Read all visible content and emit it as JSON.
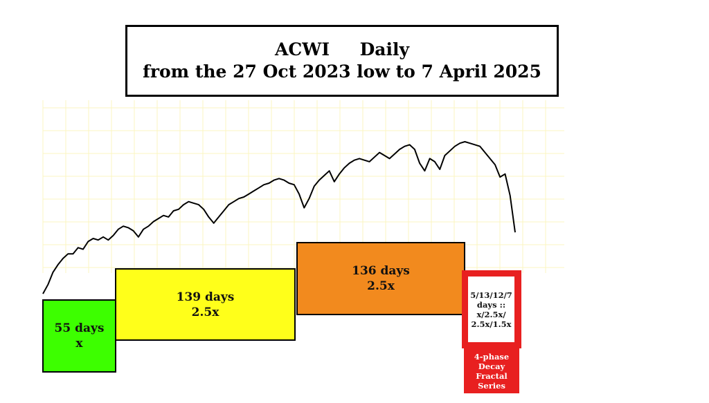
{
  "title": {
    "line1": "ACWI     Daily",
    "line2": "from the 27 Oct 2023 low to  7 April 2025"
  },
  "colors": {
    "phase1": "#3dff00",
    "phase2": "#ffff1a",
    "phase3": "#f28a1e",
    "phase4": "#e82020",
    "grid": "#fbf6c0",
    "price": "#000000"
  },
  "phases": [
    {
      "line1": "55 days",
      "line2": "x"
    },
    {
      "line1": "139 days",
      "line2": "2.5x"
    },
    {
      "line1": "136 days",
      "line2": "2.5x"
    },
    {
      "lines": [
        "5/13/12/7",
        "days ::",
        "x/2.5x/",
        "2.5x/1.5x"
      ]
    }
  ],
  "decay_label": [
    "4-phase",
    "Decay",
    "Fractal",
    "Series"
  ],
  "chart_data": {
    "type": "line",
    "series": [
      {
        "values": [
          0.0,
          0.06,
          0.14,
          0.19,
          0.23,
          0.26,
          0.26,
          0.3,
          0.29,
          0.34,
          0.36,
          0.35,
          0.37,
          0.35,
          0.38,
          0.42,
          0.44,
          0.43,
          0.41,
          0.37,
          0.42,
          0.44,
          0.47,
          0.49,
          0.51,
          0.5,
          0.54,
          0.55,
          0.58,
          0.6,
          0.59,
          0.58,
          0.55,
          0.5,
          0.46,
          0.5,
          0.54,
          0.58,
          0.6,
          0.62,
          0.63,
          0.65,
          0.67,
          0.69,
          0.71,
          0.72,
          0.74,
          0.75,
          0.74,
          0.72,
          0.71,
          0.65,
          0.56,
          0.62,
          0.7,
          0.74,
          0.77,
          0.8,
          0.73,
          0.78,
          0.82,
          0.85,
          0.87,
          0.88,
          0.87,
          0.86,
          0.89,
          0.92,
          0.9,
          0.88,
          0.91,
          0.94,
          0.96,
          0.97,
          0.94,
          0.85,
          0.8,
          0.88,
          0.86,
          0.81,
          0.9,
          0.93,
          0.96,
          0.98,
          0.99,
          0.98,
          0.97,
          0.96,
          0.92,
          0.88,
          0.84,
          0.76,
          0.78,
          0.64,
          0.4
        ]
      }
    ],
    "grid": true
  }
}
